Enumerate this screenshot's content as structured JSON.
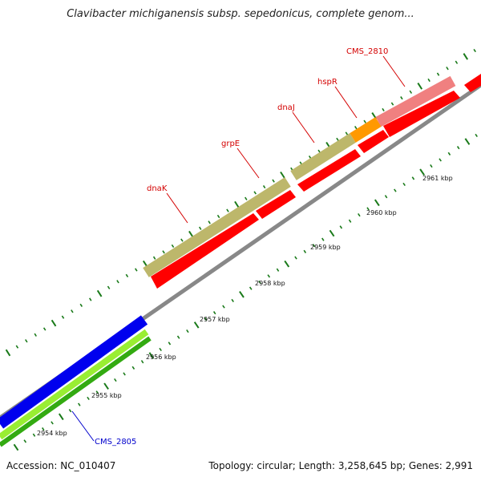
{
  "title": "Clavibacter michiganensis subsp. sepedonicus, complete genom...",
  "footer": {
    "accession": "Accession: NC_010407",
    "summary": "Topology: circular; Length: 3,258,645 bp; Genes: 2,991"
  },
  "colors": {
    "tick": "#1a7a1a",
    "backbone": "#888888",
    "cds": "#ff0000",
    "gene_label_red": "#d40000",
    "gene_label_blue": "#0000cc",
    "olive_gene": "#bdb76b",
    "orange_gene": "#ff9900",
    "pink_gene": "#f08080",
    "blue_gene": "#0000ee",
    "lightgreen_gene": "#99ee33",
    "green_gene": "#33aa11"
  },
  "scale_labels": [
    "2954 kbp",
    "2955 kbp",
    "2956 kbp",
    "2957 kbp",
    "2958 kbp",
    "2959 kbp",
    "2960 kbp",
    "2961 kbp"
  ],
  "gene_labels": [
    "dnaK",
    "grpE",
    "dnaJ",
    "hspR",
    "CMS_2810",
    "CMS_2805"
  ]
}
